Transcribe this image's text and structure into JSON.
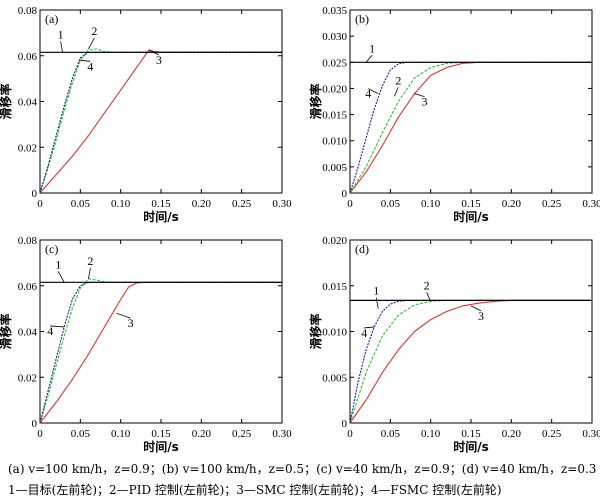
{
  "caption": {
    "line1": "(a) v=100 km/h，z=0.9；(b) v=100 km/h，z=0.5；(c) v=40 km/h，z=0.9；(d) v=40 km/h，z=0.3",
    "line2": "1—目标(左前轮)；2—PID 控制(左前轮)；3—SMC 控制(左前轮)；4—FSMC 控制(左前轮)"
  },
  "colors": {
    "target": "#000000",
    "pid": "#22cc22",
    "smc": "#dd3333",
    "fsmc": "#1a1aa8"
  },
  "chart_data": [
    {
      "panel": "(a)",
      "type": "line",
      "xlabel": "时间/s",
      "ylabel": "滑移率",
      "xlim": [
        0,
        0.3
      ],
      "ylim": [
        0,
        0.08
      ],
      "xticks": [
        "0",
        "0.05",
        "0.10",
        "0.15",
        "0.20",
        "0.25",
        "0.30"
      ],
      "yticks": [
        "0",
        "0.02",
        "0.04",
        "0.06",
        "0.08"
      ],
      "series_labels": [
        "1",
        "2",
        "3",
        "4"
      ],
      "series": [
        {
          "name": "1",
          "x": [
            0,
            0.3
          ],
          "y": [
            0.0615,
            0.0615
          ]
        },
        {
          "name": "2",
          "x": [
            0,
            0.01,
            0.02,
            0.03,
            0.04,
            0.05,
            0.06,
            0.07,
            0.08,
            0.09,
            0.1,
            0.3
          ],
          "y": [
            0,
            0.011,
            0.023,
            0.036,
            0.048,
            0.058,
            0.0625,
            0.063,
            0.0618,
            0.0615,
            0.0615,
            0.0615
          ]
        },
        {
          "name": "3",
          "x": [
            0,
            0.02,
            0.04,
            0.06,
            0.08,
            0.1,
            0.12,
            0.135,
            0.14,
            0.15,
            0.3
          ],
          "y": [
            0,
            0.008,
            0.016,
            0.025,
            0.035,
            0.045,
            0.055,
            0.0625,
            0.062,
            0.0615,
            0.0615
          ]
        },
        {
          "name": "4",
          "x": [
            0,
            0.01,
            0.02,
            0.03,
            0.04,
            0.05,
            0.06,
            0.07,
            0.3
          ],
          "y": [
            0,
            0.012,
            0.025,
            0.038,
            0.05,
            0.059,
            0.0615,
            0.0615,
            0.0615
          ]
        }
      ]
    },
    {
      "panel": "(b)",
      "type": "line",
      "xlabel": "时间/s",
      "ylabel": "滑移率",
      "xlim": [
        0,
        0.3
      ],
      "ylim": [
        0,
        0.035
      ],
      "xticks": [
        "0",
        "0.05",
        "0.10",
        "0.15",
        "0.20",
        "0.25",
        "0.30"
      ],
      "yticks": [
        "0",
        "0.005",
        "0.010",
        "0.015",
        "0.020",
        "0.025",
        "0.030",
        "0.035"
      ],
      "series_labels": [
        "1",
        "2",
        "3",
        "4"
      ],
      "series": [
        {
          "name": "1",
          "x": [
            0,
            0.3
          ],
          "y": [
            0.025,
            0.025
          ]
        },
        {
          "name": "2",
          "x": [
            0,
            0.02,
            0.04,
            0.06,
            0.08,
            0.1,
            0.12,
            0.14,
            0.3
          ],
          "y": [
            0,
            0.005,
            0.0115,
            0.0175,
            0.022,
            0.024,
            0.0248,
            0.025,
            0.025
          ]
        },
        {
          "name": "3",
          "x": [
            0,
            0.02,
            0.04,
            0.06,
            0.08,
            0.1,
            0.12,
            0.14,
            0.16,
            0.3
          ],
          "y": [
            0,
            0.004,
            0.009,
            0.0145,
            0.019,
            0.0225,
            0.024,
            0.0248,
            0.025,
            0.025
          ]
        },
        {
          "name": "4",
          "x": [
            0,
            0.01,
            0.02,
            0.03,
            0.04,
            0.05,
            0.06,
            0.07,
            0.08,
            0.3
          ],
          "y": [
            0,
            0.005,
            0.0105,
            0.016,
            0.0205,
            0.0235,
            0.0247,
            0.025,
            0.025,
            0.025
          ]
        }
      ]
    },
    {
      "panel": "(c)",
      "type": "line",
      "xlabel": "时间/s",
      "ylabel": "滑移率",
      "xlim": [
        0,
        0.3
      ],
      "ylim": [
        0,
        0.08
      ],
      "xticks": [
        "0",
        "0.05",
        "0.10",
        "0.15",
        "0.20",
        "0.25",
        "0.30"
      ],
      "yticks": [
        "0",
        "0.02",
        "0.04",
        "0.06",
        "0.08"
      ],
      "series_labels": [
        "1",
        "2",
        "3",
        "4"
      ],
      "series": [
        {
          "name": "1",
          "x": [
            0,
            0.3
          ],
          "y": [
            0.0615,
            0.0615
          ]
        },
        {
          "name": "2",
          "x": [
            0,
            0.01,
            0.02,
            0.03,
            0.04,
            0.05,
            0.06,
            0.07,
            0.08,
            0.09,
            0.3
          ],
          "y": [
            0,
            0.012,
            0.025,
            0.038,
            0.05,
            0.059,
            0.063,
            0.0625,
            0.0617,
            0.0615,
            0.0615
          ]
        },
        {
          "name": "3",
          "x": [
            0,
            0.02,
            0.04,
            0.06,
            0.08,
            0.1,
            0.11,
            0.12,
            0.13,
            0.3
          ],
          "y": [
            0,
            0.009,
            0.019,
            0.03,
            0.042,
            0.054,
            0.0595,
            0.0612,
            0.0615,
            0.0615
          ]
        },
        {
          "name": "4",
          "x": [
            0,
            0.01,
            0.02,
            0.03,
            0.04,
            0.05,
            0.06,
            0.3
          ],
          "y": [
            0,
            0.014,
            0.028,
            0.042,
            0.054,
            0.06,
            0.0615,
            0.0615
          ]
        }
      ]
    },
    {
      "panel": "(d)",
      "type": "line",
      "xlabel": "时间/s",
      "ylabel": "滑移率",
      "xlim": [
        0,
        0.3
      ],
      "ylim": [
        0,
        0.02
      ],
      "xticks": [
        "0",
        "0.05",
        "0.10",
        "0.15",
        "0.20",
        "0.25",
        "0.30"
      ],
      "yticks": [
        "0",
        "0.005",
        "0.010",
        "0.015",
        "0.020"
      ],
      "series_labels": [
        "1",
        "2",
        "3",
        "4"
      ],
      "series": [
        {
          "name": "1",
          "x": [
            0,
            0.3
          ],
          "y": [
            0.0134,
            0.0134
          ]
        },
        {
          "name": "2",
          "x": [
            0,
            0.02,
            0.04,
            0.06,
            0.08,
            0.1,
            0.12,
            0.3
          ],
          "y": [
            0,
            0.0055,
            0.0095,
            0.0118,
            0.0129,
            0.0133,
            0.0134,
            0.0134
          ]
        },
        {
          "name": "3",
          "x": [
            0,
            0.02,
            0.04,
            0.06,
            0.08,
            0.1,
            0.12,
            0.14,
            0.16,
            0.18,
            0.2,
            0.3
          ],
          "y": [
            0,
            0.0025,
            0.0055,
            0.008,
            0.01,
            0.0113,
            0.0122,
            0.0128,
            0.0131,
            0.0133,
            0.0134,
            0.0134
          ]
        },
        {
          "name": "4",
          "x": [
            0,
            0.01,
            0.02,
            0.03,
            0.04,
            0.05,
            0.06,
            0.07,
            0.3
          ],
          "y": [
            0,
            0.0045,
            0.008,
            0.0105,
            0.0122,
            0.013,
            0.0133,
            0.0134,
            0.0134
          ]
        }
      ]
    }
  ]
}
